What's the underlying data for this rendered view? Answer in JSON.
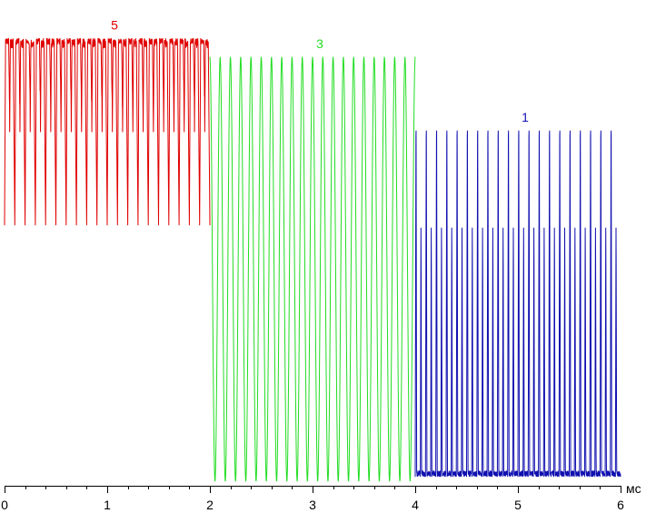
{
  "chart_data": {
    "type": "line",
    "title": "",
    "xlabel": "",
    "ylabel": "",
    "x_unit": "мс",
    "xlim": [
      0,
      6
    ],
    "ylim": [
      0,
      100
    ],
    "x_ticks": [
      0,
      1,
      2,
      3,
      4,
      5,
      6
    ],
    "x_tick_labels": [
      "0",
      "1",
      "2",
      "3",
      "4",
      "5",
      "6"
    ],
    "grid": false,
    "legend": "none",
    "series": [
      {
        "name": "5",
        "color": "#e00000",
        "x_range": [
          0,
          2
        ],
        "cycles": 20,
        "high": 96,
        "low": 56,
        "shape": "pulse-down"
      },
      {
        "name": "3",
        "color": "#22dd22",
        "x_range": [
          2,
          4
        ],
        "cycles": 20,
        "high": 92,
        "low": 1,
        "shape": "sine"
      },
      {
        "name": "1",
        "color": "#1010b0",
        "x_range": [
          4,
          6
        ],
        "cycles": 20,
        "high": 84,
        "low": 2,
        "mid": 58,
        "shape": "spike-up"
      }
    ]
  }
}
